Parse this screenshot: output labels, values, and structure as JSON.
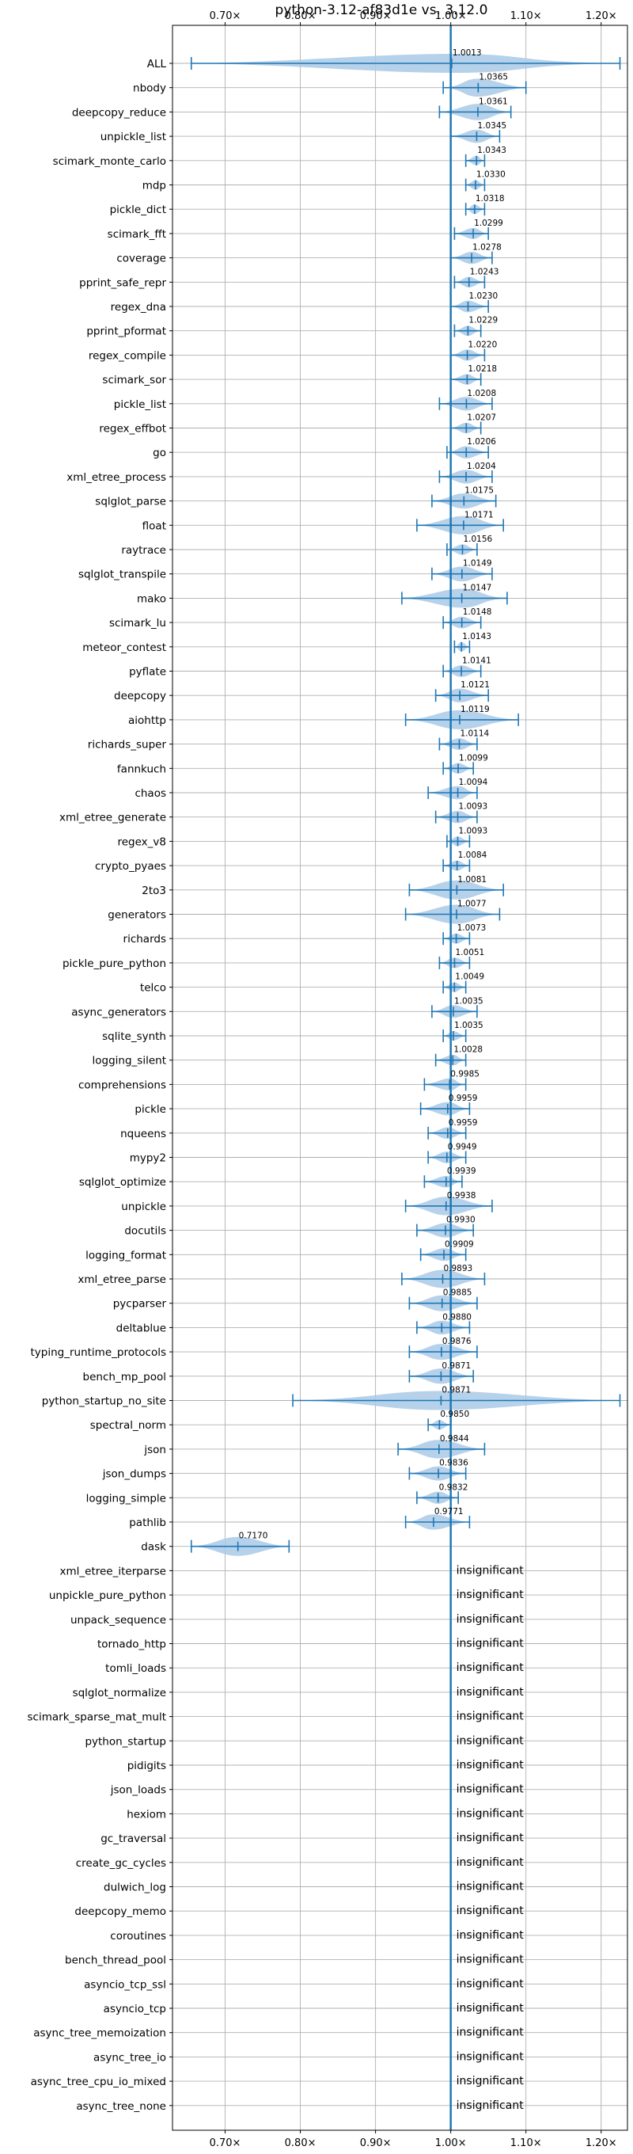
{
  "chart_data": {
    "type": "violin",
    "title": "python-3.12-af83d1e vs. 3.12.0",
    "xlabel": "",
    "ylabel": "",
    "xlim": [
      0.63,
      1.235
    ],
    "x_ticks": [
      0.7,
      0.8,
      0.9,
      1.0,
      1.1,
      1.2
    ],
    "x_tick_labels": [
      "0.70×",
      "0.80×",
      "0.90×",
      "1.00×",
      "1.10×",
      "1.20×"
    ],
    "grid": true,
    "reference_line": 1.0,
    "colors": {
      "violin_fill": "#a9c9e6",
      "whisker": "#1f77b4",
      "grid": "#b0b0b0"
    },
    "insignificant_label": "insignificant",
    "categories": [
      "ALL",
      "nbody",
      "deepcopy_reduce",
      "unpickle_list",
      "scimark_monte_carlo",
      "mdp",
      "pickle_dict",
      "scimark_fft",
      "coverage",
      "pprint_safe_repr",
      "regex_dna",
      "pprint_pformat",
      "regex_compile",
      "scimark_sor",
      "pickle_list",
      "regex_effbot",
      "go",
      "xml_etree_process",
      "sqlglot_parse",
      "float",
      "raytrace",
      "sqlglot_transpile",
      "mako",
      "scimark_lu",
      "meteor_contest",
      "pyflate",
      "deepcopy",
      "aiohttp",
      "richards_super",
      "fannkuch",
      "chaos",
      "xml_etree_generate",
      "regex_v8",
      "crypto_pyaes",
      "2to3",
      "generators",
      "richards",
      "pickle_pure_python",
      "telco",
      "async_generators",
      "sqlite_synth",
      "logging_silent",
      "comprehensions",
      "pickle",
      "nqueens",
      "mypy2",
      "sqlglot_optimize",
      "unpickle",
      "docutils",
      "logging_format",
      "xml_etree_parse",
      "pycparser",
      "deltablue",
      "typing_runtime_protocols",
      "bench_mp_pool",
      "python_startup_no_site",
      "spectral_norm",
      "json",
      "json_dumps",
      "logging_simple",
      "pathlib",
      "dask",
      "xml_etree_iterparse",
      "unpickle_pure_python",
      "unpack_sequence",
      "tornado_http",
      "tomli_loads",
      "sqlglot_normalize",
      "scimark_sparse_mat_mult",
      "python_startup",
      "pidigits",
      "json_loads",
      "hexiom",
      "gc_traversal",
      "create_gc_cycles",
      "dulwich_log",
      "deepcopy_memo",
      "coroutines",
      "bench_thread_pool",
      "asyncio_tcp_ssl",
      "asyncio_tcp",
      "async_tree_memoization",
      "async_tree_io",
      "async_tree_cpu_io_mixed",
      "async_tree_none"
    ],
    "series": [
      {
        "values": [
          {
            "label": "1.0013",
            "mean": 1.0013,
            "min": 0.655,
            "max": 1.225
          },
          {
            "label": "1.0365",
            "mean": 1.0365,
            "min": 0.99,
            "max": 1.1
          },
          {
            "label": "1.0361",
            "mean": 1.0361,
            "min": 0.985,
            "max": 1.08
          },
          {
            "label": "1.0345",
            "mean": 1.0345,
            "min": 1.0,
            "max": 1.065
          },
          {
            "label": "1.0343",
            "mean": 1.0343,
            "min": 1.02,
            "max": 1.045
          },
          {
            "label": "1.0330",
            "mean": 1.033,
            "min": 1.02,
            "max": 1.045
          },
          {
            "label": "1.0318",
            "mean": 1.0318,
            "min": 1.02,
            "max": 1.045
          },
          {
            "label": "1.0299",
            "mean": 1.0299,
            "min": 1.005,
            "max": 1.05
          },
          {
            "label": "1.0278",
            "mean": 1.0278,
            "min": 1.0,
            "max": 1.055
          },
          {
            "label": "1.0243",
            "mean": 1.0243,
            "min": 1.005,
            "max": 1.045
          },
          {
            "label": "1.0230",
            "mean": 1.023,
            "min": 1.0,
            "max": 1.05
          },
          {
            "label": "1.0229",
            "mean": 1.0229,
            "min": 1.005,
            "max": 1.04
          },
          {
            "label": "1.0220",
            "mean": 1.022,
            "min": 1.0,
            "max": 1.045
          },
          {
            "label": "1.0218",
            "mean": 1.0218,
            "min": 1.0,
            "max": 1.04
          },
          {
            "label": "1.0208",
            "mean": 1.0208,
            "min": 0.985,
            "max": 1.055
          },
          {
            "label": "1.0207",
            "mean": 1.0207,
            "min": 1.0,
            "max": 1.04
          },
          {
            "label": "1.0206",
            "mean": 1.0206,
            "min": 0.995,
            "max": 1.05
          },
          {
            "label": "1.0204",
            "mean": 1.0204,
            "min": 0.985,
            "max": 1.055
          },
          {
            "label": "1.0175",
            "mean": 1.0175,
            "min": 0.975,
            "max": 1.06
          },
          {
            "label": "1.0171",
            "mean": 1.0171,
            "min": 0.955,
            "max": 1.07
          },
          {
            "label": "1.0156",
            "mean": 1.0156,
            "min": 0.995,
            "max": 1.035
          },
          {
            "label": "1.0149",
            "mean": 1.0149,
            "min": 0.975,
            "max": 1.055
          },
          {
            "label": "1.0147",
            "mean": 1.0147,
            "min": 0.935,
            "max": 1.075
          },
          {
            "label": "1.0148",
            "mean": 1.0148,
            "min": 0.99,
            "max": 1.04
          },
          {
            "label": "1.0143",
            "mean": 1.0143,
            "min": 1.005,
            "max": 1.025
          },
          {
            "label": "1.0141",
            "mean": 1.0141,
            "min": 0.99,
            "max": 1.04
          },
          {
            "label": "1.0121",
            "mean": 1.0121,
            "min": 0.98,
            "max": 1.05
          },
          {
            "label": "1.0119",
            "mean": 1.0119,
            "min": 0.94,
            "max": 1.09
          },
          {
            "label": "1.0114",
            "mean": 1.0114,
            "min": 0.985,
            "max": 1.035
          },
          {
            "label": "1.0099",
            "mean": 1.0099,
            "min": 0.99,
            "max": 1.03
          },
          {
            "label": "1.0094",
            "mean": 1.0094,
            "min": 0.97,
            "max": 1.035
          },
          {
            "label": "1.0093",
            "mean": 1.0093,
            "min": 0.98,
            "max": 1.035
          },
          {
            "label": "1.0093",
            "mean": 1.0093,
            "min": 0.995,
            "max": 1.025
          },
          {
            "label": "1.0084",
            "mean": 1.0084,
            "min": 0.99,
            "max": 1.025
          },
          {
            "label": "1.0081",
            "mean": 1.0081,
            "min": 0.945,
            "max": 1.07
          },
          {
            "label": "1.0077",
            "mean": 1.0077,
            "min": 0.94,
            "max": 1.065
          },
          {
            "label": "1.0073",
            "mean": 1.0073,
            "min": 0.99,
            "max": 1.025
          },
          {
            "label": "1.0051",
            "mean": 1.0051,
            "min": 0.985,
            "max": 1.025
          },
          {
            "label": "1.0049",
            "mean": 1.0049,
            "min": 0.99,
            "max": 1.02
          },
          {
            "label": "1.0035",
            "mean": 1.0035,
            "min": 0.975,
            "max": 1.035
          },
          {
            "label": "1.0035",
            "mean": 1.0035,
            "min": 0.99,
            "max": 1.02
          },
          {
            "label": "1.0028",
            "mean": 1.0028,
            "min": 0.98,
            "max": 1.02
          },
          {
            "label": "0.9985",
            "mean": 0.9985,
            "min": 0.965,
            "max": 1.02
          },
          {
            "label": "0.9959",
            "mean": 0.9959,
            "min": 0.96,
            "max": 1.025
          },
          {
            "label": "0.9959",
            "mean": 0.9959,
            "min": 0.97,
            "max": 1.02
          },
          {
            "label": "0.9949",
            "mean": 0.9949,
            "min": 0.97,
            "max": 1.02
          },
          {
            "label": "0.9939",
            "mean": 0.9939,
            "min": 0.965,
            "max": 1.015
          },
          {
            "label": "0.9938",
            "mean": 0.9938,
            "min": 0.94,
            "max": 1.055
          },
          {
            "label": "0.9930",
            "mean": 0.993,
            "min": 0.955,
            "max": 1.03
          },
          {
            "label": "0.9909",
            "mean": 0.9909,
            "min": 0.96,
            "max": 1.02
          },
          {
            "label": "0.9893",
            "mean": 0.9893,
            "min": 0.935,
            "max": 1.045
          },
          {
            "label": "0.9885",
            "mean": 0.9885,
            "min": 0.945,
            "max": 1.035
          },
          {
            "label": "0.9880",
            "mean": 0.988,
            "min": 0.955,
            "max": 1.025
          },
          {
            "label": "0.9876",
            "mean": 0.9876,
            "min": 0.945,
            "max": 1.035
          },
          {
            "label": "0.9871",
            "mean": 0.9871,
            "min": 0.945,
            "max": 1.03
          },
          {
            "label": "0.9871",
            "mean": 0.9871,
            "min": 0.79,
            "max": 1.225
          },
          {
            "label": "0.9850",
            "mean": 0.985,
            "min": 0.97,
            "max": 1.0
          },
          {
            "label": "0.9844",
            "mean": 0.9844,
            "min": 0.93,
            "max": 1.045
          },
          {
            "label": "0.9836",
            "mean": 0.9836,
            "min": 0.945,
            "max": 1.02
          },
          {
            "label": "0.9832",
            "mean": 0.9832,
            "min": 0.955,
            "max": 1.01
          },
          {
            "label": "0.9771",
            "mean": 0.9771,
            "min": 0.94,
            "max": 1.025
          },
          {
            "label": "0.7170",
            "mean": 0.717,
            "min": 0.655,
            "max": 0.785
          },
          null,
          null,
          null,
          null,
          null,
          null,
          null,
          null,
          null,
          null,
          null,
          null,
          null,
          null,
          null,
          null,
          null,
          null,
          null,
          null,
          null,
          null,
          null
        ]
      }
    ]
  }
}
